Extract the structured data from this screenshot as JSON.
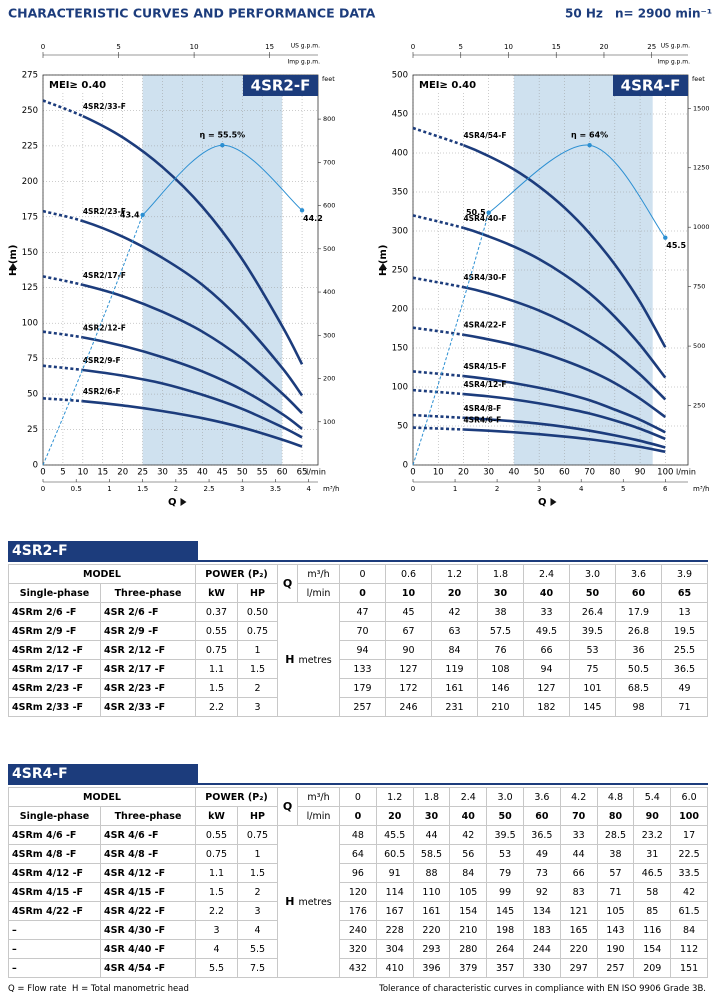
{
  "header": {
    "title": "CHARACTERISTIC CURVES AND PERFORMANCE DATA",
    "frequency": "50 Hz",
    "speed": "n= 2900 min⁻¹"
  },
  "chart_data": [
    {
      "type": "line",
      "title": "4SR2-F",
      "note": "MEI≥ 0.40",
      "y_label": "H (m)",
      "x_label": "Q",
      "ylim": [
        0,
        275
      ],
      "yticks": [
        0,
        25,
        50,
        75,
        100,
        125,
        150,
        175,
        200,
        225,
        250,
        275
      ],
      "y2_label": "feet",
      "y2lim": [
        0,
        902
      ],
      "y2ticks": [
        100,
        200,
        300,
        400,
        500,
        600,
        700,
        800
      ],
      "xlim": [
        0,
        69
      ],
      "xticks": [
        0,
        5,
        10,
        15,
        20,
        25,
        30,
        35,
        40,
        45,
        50,
        55,
        60,
        65
      ],
      "x_unit": "l/min",
      "top_axis": {
        "label": "US g.p.m.",
        "lim": [
          0,
          18.2
        ],
        "ticks": [
          0,
          5,
          10,
          15
        ]
      },
      "top_axis2_label": "Imp g.p.m.",
      "bottom_axis": {
        "label": "m³/h",
        "lim": [
          0,
          4.14
        ],
        "ticks": [
          0,
          0.5,
          1,
          1.5,
          2,
          2.5,
          3,
          3.5,
          4
        ]
      },
      "shaded_range": [
        25,
        60
      ],
      "grid": true,
      "color": "#1c3c7c",
      "x": [
        0,
        10,
        20,
        30,
        40,
        50,
        60,
        65
      ],
      "series": [
        {
          "name": "4SR2/33-F",
          "values": [
            257,
            246,
            231,
            210,
            182,
            145,
            98,
            71
          ]
        },
        {
          "name": "4SR2/23-F",
          "values": [
            179,
            172,
            161,
            146,
            127,
            101,
            68.5,
            49
          ]
        },
        {
          "name": "4SR2/17-F",
          "values": [
            133,
            127,
            119,
            108,
            94,
            75,
            50.5,
            36.5
          ]
        },
        {
          "name": "4SR2/12-F",
          "values": [
            94,
            90,
            84,
            76,
            66,
            53,
            36,
            25.5
          ]
        },
        {
          "name": "4SR2/9-F",
          "values": [
            70,
            67,
            63,
            57.5,
            49.5,
            39.5,
            26.8,
            19.5
          ]
        },
        {
          "name": "4SR2/6-F",
          "values": [
            47,
            45,
            42,
            38,
            33,
            26.4,
            17.9,
            13
          ]
        }
      ],
      "efficiency": {
        "color": "#2b8fd2",
        "x": [
          25,
          45,
          65
        ],
        "values": [
          43.4,
          55.5,
          44.2
        ],
        "value_labels": [
          "43.4",
          "η = 55.5%",
          "44.2"
        ]
      }
    },
    {
      "type": "line",
      "title": "4SR4-F",
      "note": "MEI≥ 0.40",
      "y_label": "H (m)",
      "x_label": "Q",
      "ylim": [
        0,
        500
      ],
      "yticks": [
        0,
        50,
        100,
        150,
        200,
        250,
        300,
        350,
        400,
        450,
        500
      ],
      "y2_label": "feet",
      "y2lim": [
        0,
        1640
      ],
      "y2ticks": [
        250,
        500,
        750,
        1000,
        1250,
        1500
      ],
      "xlim": [
        0,
        109
      ],
      "xticks": [
        0,
        10,
        20,
        30,
        40,
        50,
        60,
        70,
        80,
        90,
        100
      ],
      "x_unit": "l/min",
      "top_axis": {
        "label": "US g.p.m.",
        "lim": [
          0,
          28.8
        ],
        "ticks": [
          0,
          5,
          10,
          15,
          20,
          25
        ]
      },
      "top_axis2_label": "Imp g.p.m.",
      "bottom_axis": {
        "label": "m³/h",
        "lim": [
          0,
          6.54
        ],
        "ticks": [
          0,
          1,
          2,
          3,
          4,
          5,
          6
        ]
      },
      "shaded_range": [
        40,
        95
      ],
      "grid": true,
      "color": "#1c3c7c",
      "x": [
        0,
        20,
        30,
        40,
        50,
        60,
        70,
        80,
        90,
        100
      ],
      "series": [
        {
          "name": "4SR4/54-F",
          "values": [
            432,
            410,
            396,
            379,
            357,
            330,
            297,
            257,
            209,
            151
          ]
        },
        {
          "name": "4SR4/40-F",
          "values": [
            320,
            304,
            293,
            280,
            264,
            244,
            220,
            190,
            154,
            112
          ]
        },
        {
          "name": "4SR4/30-F",
          "values": [
            240,
            228,
            220,
            210,
            198,
            183,
            165,
            143,
            116,
            84
          ]
        },
        {
          "name": "4SR4/22-F",
          "values": [
            176,
            167,
            161,
            154,
            145,
            134,
            121,
            105,
            85,
            61.5
          ]
        },
        {
          "name": "4SR4/15-F",
          "values": [
            120,
            114,
            110,
            105,
            99,
            92,
            83,
            71,
            58,
            42
          ]
        },
        {
          "name": "4SR4/12-F",
          "values": [
            96,
            91,
            88,
            84,
            79,
            73,
            66,
            57,
            46.5,
            33.5
          ]
        },
        {
          "name": "4SR4/8-F",
          "values": [
            64,
            60.5,
            58.5,
            56,
            53,
            49,
            44,
            38,
            31,
            22.5
          ]
        },
        {
          "name": "4SR4/6-F",
          "values": [
            48,
            45.5,
            44,
            42,
            39.5,
            36.5,
            33,
            28.5,
            23.2,
            17
          ]
        }
      ],
      "efficiency": {
        "color": "#2b8fd2",
        "x": [
          30,
          70,
          100
        ],
        "values": [
          50.5,
          64,
          45.5
        ],
        "value_labels": [
          "50.5",
          "η = 64%",
          "45.5"
        ]
      }
    }
  ],
  "tables": [
    {
      "title": "4SR2-F",
      "model": "MODEL",
      "power": "POWER (P₂)",
      "single": "Single-phase",
      "three": "Three-phase",
      "kw": "kW",
      "hp": "HP",
      "q": "Q",
      "m3h_unit": "m³/h",
      "lmin_unit": "l/min",
      "h": "H",
      "h_unit": "metres",
      "m3h": [
        0,
        0.6,
        1.2,
        1.8,
        2.4,
        "3.0",
        3.6,
        3.9
      ],
      "lmin": [
        0,
        10,
        20,
        30,
        40,
        50,
        60,
        65
      ],
      "rows": [
        {
          "single": "4SRm 2/6 -F",
          "three": "4SR 2/6 -F",
          "kw": 0.37,
          "hp": "0.50",
          "h": [
            47,
            45,
            42,
            38,
            33,
            26.4,
            17.9,
            13
          ]
        },
        {
          "single": "4SRm 2/9 -F",
          "three": "4SR 2/9 -F",
          "kw": 0.55,
          "hp": "0.75",
          "h": [
            70,
            67,
            63,
            57.5,
            49.5,
            39.5,
            26.8,
            19.5
          ]
        },
        {
          "single": "4SRm 2/12 -F",
          "three": "4SR 2/12 -F",
          "kw": 0.75,
          "hp": 1,
          "h": [
            94,
            90,
            84,
            76,
            66,
            53,
            36,
            25.5
          ]
        },
        {
          "single": "4SRm 2/17 -F",
          "three": "4SR 2/17 -F",
          "kw": 1.1,
          "hp": 1.5,
          "h": [
            133,
            127,
            119,
            108,
            94,
            75,
            50.5,
            36.5
          ]
        },
        {
          "single": "4SRm 2/23 -F",
          "three": "4SR 2/23 -F",
          "kw": 1.5,
          "hp": 2,
          "h": [
            179,
            172,
            161,
            146,
            127,
            101,
            68.5,
            49
          ]
        },
        {
          "single": "4SRm 2/33 -F",
          "three": "4SR 2/33 -F",
          "kw": 2.2,
          "hp": 3,
          "h": [
            257,
            246,
            231,
            210,
            182,
            145,
            98,
            71
          ]
        }
      ]
    },
    {
      "title": "4SR4-F",
      "model": "MODEL",
      "power": "POWER (P₂)",
      "single": "Single-phase",
      "three": "Three-phase",
      "kw": "kW",
      "hp": "HP",
      "q": "Q",
      "m3h_unit": "m³/h",
      "lmin_unit": "l/min",
      "h": "H",
      "h_unit": "metres",
      "m3h": [
        0,
        1.2,
        1.8,
        2.4,
        "3.0",
        3.6,
        4.2,
        4.8,
        5.4,
        "6.0"
      ],
      "lmin": [
        0,
        20,
        30,
        40,
        50,
        60,
        70,
        80,
        90,
        100
      ],
      "rows": [
        {
          "single": "4SRm 4/6 -F",
          "three": "4SR 4/6 -F",
          "kw": 0.55,
          "hp": "0.75",
          "h": [
            48,
            45.5,
            44,
            42,
            39.5,
            36.5,
            33,
            28.5,
            23.2,
            17
          ]
        },
        {
          "single": "4SRm 4/8 -F",
          "three": "4SR 4/8 -F",
          "kw": 0.75,
          "hp": 1,
          "h": [
            64,
            60.5,
            58.5,
            56,
            53,
            49,
            44,
            38,
            31,
            22.5
          ]
        },
        {
          "single": "4SRm 4/12 -F",
          "three": "4SR 4/12 -F",
          "kw": 1.1,
          "hp": 1.5,
          "h": [
            96,
            91,
            88,
            84,
            79,
            73,
            66,
            57,
            46.5,
            33.5
          ]
        },
        {
          "single": "4SRm 4/15 -F",
          "three": "4SR 4/15 -F",
          "kw": 1.5,
          "hp": 2,
          "h": [
            120,
            114,
            110,
            105,
            99,
            92,
            83,
            71,
            58,
            42
          ]
        },
        {
          "single": "4SRm 4/22 -F",
          "three": "4SR 4/22 -F",
          "kw": 2.2,
          "hp": 3,
          "h": [
            176,
            167,
            161,
            154,
            145,
            134,
            121,
            105,
            85,
            61.5
          ]
        },
        {
          "single": "–",
          "three": "4SR 4/30 -F",
          "kw": 3,
          "hp": 4,
          "h": [
            240,
            228,
            220,
            210,
            198,
            183,
            165,
            143,
            116,
            84
          ]
        },
        {
          "single": "–",
          "three": "4SR 4/40 -F",
          "kw": 4,
          "hp": 5.5,
          "h": [
            320,
            304,
            293,
            280,
            264,
            244,
            220,
            190,
            154,
            112
          ]
        },
        {
          "single": "–",
          "three": "4SR 4/54 -F",
          "kw": 5.5,
          "hp": 7.5,
          "h": [
            432,
            410,
            396,
            379,
            357,
            330,
            297,
            257,
            209,
            151
          ]
        }
      ]
    }
  ],
  "footer": {
    "q_note": "Q = Flow rate",
    "h_note": "H = Total manometric head",
    "tolerance": "Tolerance of characteristic curves in compliance with EN ISO 9906 Grade 3B."
  }
}
